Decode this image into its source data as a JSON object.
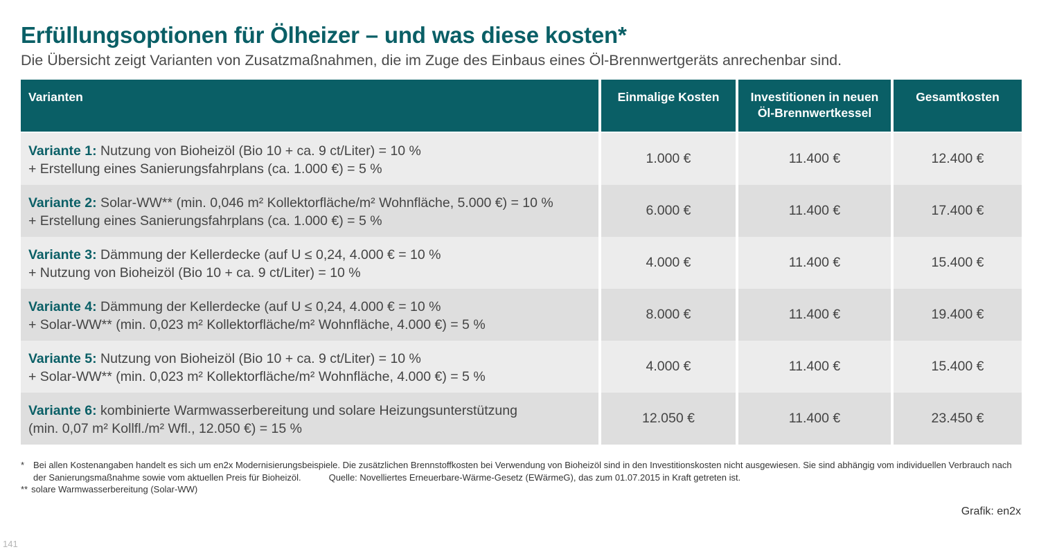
{
  "header": {
    "title": "Erfüllungsoptionen für Ölheizer – und was diese kosten*",
    "subtitle": "Die Übersicht zeigt Varianten von Zusatzmaßnahmen, die im Zuge des Einbaus eines Öl-Brennwertgeräts anrechenbar sind."
  },
  "table": {
    "headers": {
      "varianten": "Varianten",
      "einmalige": "Einmalige Kosten",
      "investition_line1": "Investitionen in neuen",
      "investition_line2": "Öl-Brennwertkessel",
      "gesamt": "Gesamtkosten"
    },
    "rows": [
      {
        "label": "Variante 1:",
        "line1": " Nutzung von Bioheizöl (Bio 10 + ca. 9 ct/Liter) = 10 %",
        "line2": "+ Erstellung eines Sanierungsfahrplans (ca. 1.000 €) = 5 %",
        "einmalig": "1.000 €",
        "invest": "11.400 €",
        "gesamt": "12.400 €"
      },
      {
        "label": "Variante 2:",
        "line1": " Solar-WW** (min. 0,046 m² Kollektorfläche/m² Wohnfläche, 5.000 €) = 10 %",
        "line2": "+ Erstellung eines Sanierungsfahrplans (ca. 1.000 €) = 5 %",
        "einmalig": "6.000 €",
        "invest": "11.400 €",
        "gesamt": "17.400 €"
      },
      {
        "label": "Variante 3:",
        "line1": " Dämmung der Kellerdecke (auf U ≤ 0,24, 4.000 € = 10 %",
        "line2": "+ Nutzung von Bioheizöl (Bio 10 + ca. 9 ct/Liter) = 10 %",
        "einmalig": "4.000 €",
        "invest": "11.400 €",
        "gesamt": "15.400 €"
      },
      {
        "label": "Variante 4:",
        "line1": " Dämmung der Kellerdecke (auf U ≤ 0,24, 4.000 € = 10 %",
        "line2": "+ Solar-WW** (min. 0,023 m² Kollektorfläche/m² Wohnfläche, 4.000 €) = 5 %",
        "einmalig": "8.000 €",
        "invest": "11.400 €",
        "gesamt": "19.400 €"
      },
      {
        "label": "Variante 5:",
        "line1": " Nutzung von Bioheizöl (Bio 10 + ca. 9 ct/Liter) = 10 %",
        "line2": "+ Solar-WW** (min. 0,023 m² Kollektorfläche/m² Wohnfläche, 4.000 €) = 5 %",
        "einmalig": "4.000 €",
        "invest": "11.400 €",
        "gesamt": "15.400 €"
      },
      {
        "label": "Variante 6:",
        "line1": " kombinierte Warmwasserbereitung und solare Heizungsunterstützung",
        "line2": "(min. 0,07 m² Kollfl./m² Wfl., 12.050 €) = 15 %",
        "einmalig": "12.050 €",
        "invest": "11.400 €",
        "gesamt": "23.450 €"
      }
    ]
  },
  "footnotes": {
    "note1_mark": "*",
    "note1_text": "Bei allen Kostenangaben handelt es sich um en2x Modernisierungsbeispiele. Die zusätzlichen Brennstoffkosten bei Verwendung von Bioheizöl sind in den Investitionskosten nicht ausgewiesen. Sie sind abhängig vom individuellen Verbrauch nach der Sanierungsmaßnahme sowie vom aktuellen Preis für Bioheizöl.",
    "quelle": "Quelle: Novelliertes Erneuerbare-Wärme-Gesetz (EWärmeG), das zum 01.07.2015 in Kraft getreten ist.",
    "note2_mark": "**",
    "note2_text": "solare Warmwasserbereitung (Solar-WW)"
  },
  "credit": "Grafik: en2x",
  "page_number": "141",
  "colors": {
    "accent": "#0a5f66",
    "row_light": "#ececec",
    "row_dark": "#dedede"
  }
}
